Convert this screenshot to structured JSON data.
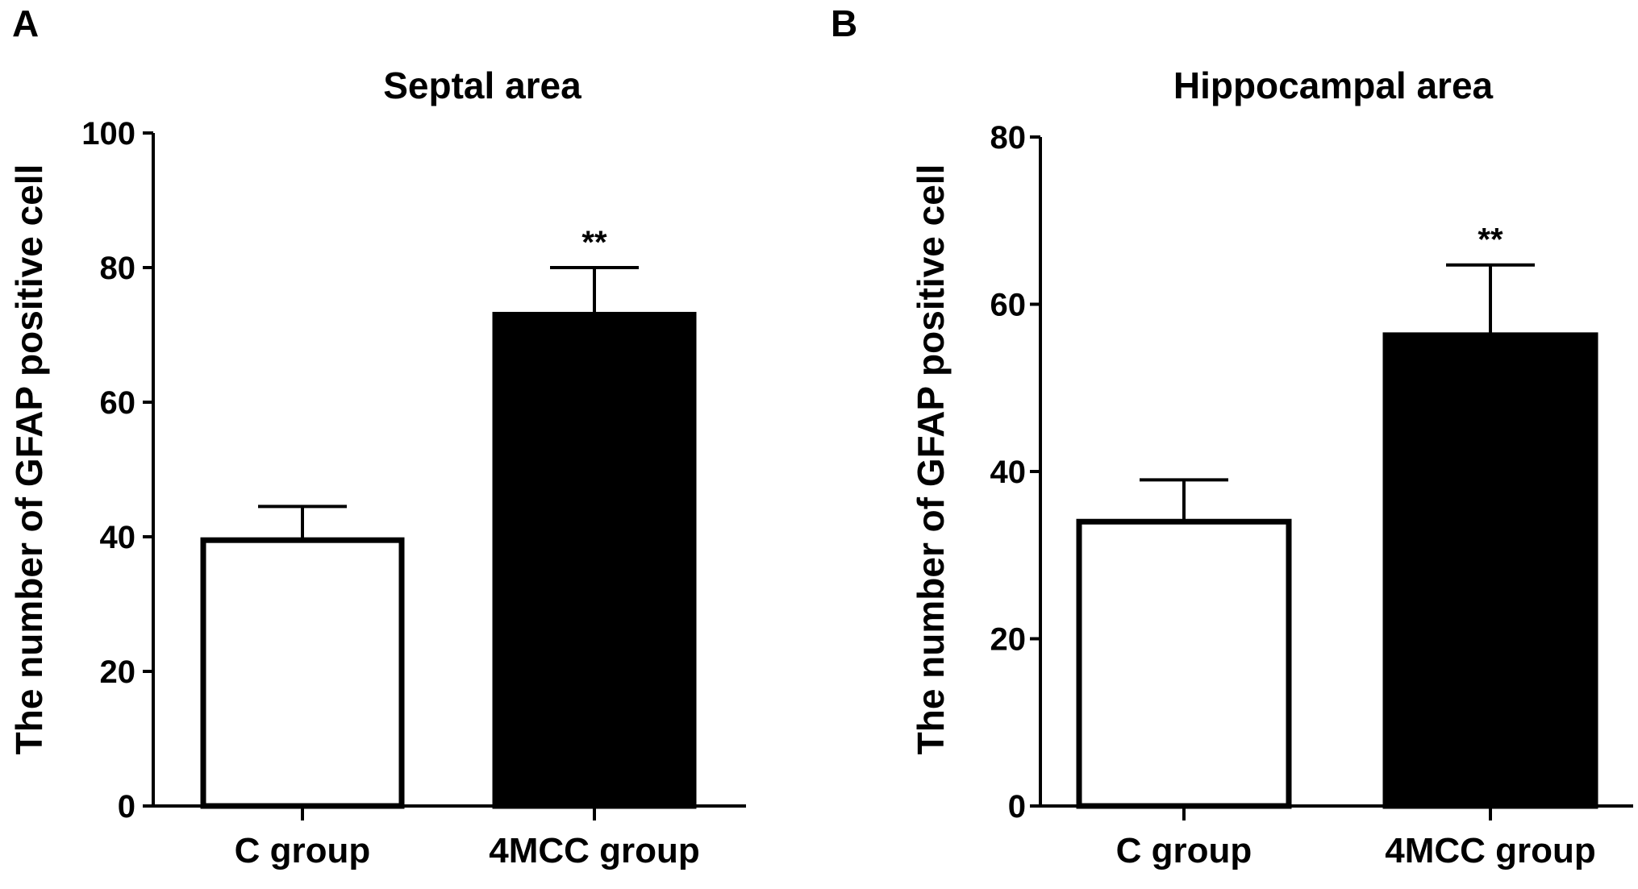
{
  "chart_data": [
    {
      "panel_label": "A",
      "type": "bar",
      "title": "Septal area",
      "ylabel": "The number of GFAP positive cell",
      "xlabel": "",
      "categories": [
        "C group",
        "4MCC group"
      ],
      "values": [
        39.5,
        73
      ],
      "errors": [
        5,
        7
      ],
      "bar_fills": [
        "#ffffff",
        "#000000"
      ],
      "annotations": [
        "",
        "**"
      ],
      "ylim": [
        0,
        100
      ],
      "yticks": [
        0,
        20,
        40,
        60,
        80,
        100
      ],
      "grid": false
    },
    {
      "panel_label": "B",
      "type": "bar",
      "title": "Hippocampal area",
      "ylabel": "The number of GFAP positive cell",
      "xlabel": "",
      "categories": [
        "C group",
        "4MCC group"
      ],
      "values": [
        34,
        56.3
      ],
      "errors": [
        5,
        8.4
      ],
      "bar_fills": [
        "#ffffff",
        "#000000"
      ],
      "annotations": [
        "",
        "**"
      ],
      "ylim": [
        0,
        80
      ],
      "yticks": [
        0,
        20,
        40,
        60,
        80
      ],
      "grid": false
    }
  ]
}
